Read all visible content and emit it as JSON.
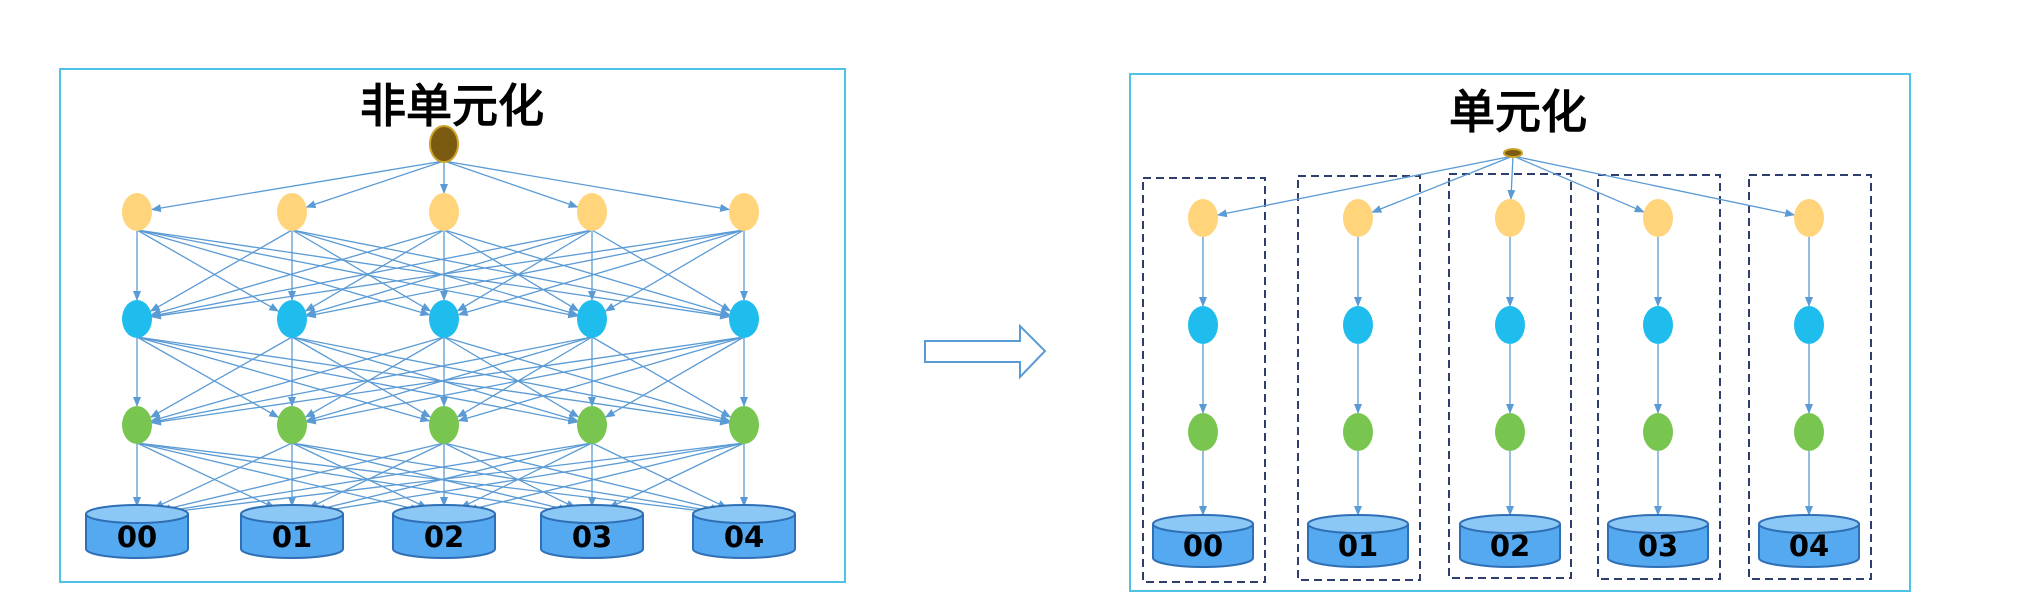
{
  "diagram": {
    "left_panel": {
      "title": "非单元化",
      "databases": [
        "00",
        "01",
        "02",
        "03",
        "04"
      ]
    },
    "right_panel": {
      "title": "单元化",
      "databases": [
        "00",
        "01",
        "02",
        "03",
        "04"
      ]
    },
    "colors": {
      "panel_border": "#4FC3E6",
      "edge": "#5B9BD5",
      "root_node": "#7B5A12",
      "root_node_stroke": "#C9A227",
      "tier1_node": "#FFD47A",
      "tier2_node": "#1FBDEE",
      "tier3_node": "#78C550",
      "database_fill": "#55A9F0",
      "database_top": "#8CC8F6",
      "database_stroke": "#2F6FB5",
      "cell_border": "#2E3F6E",
      "transition_arrow": "#5B9BD5"
    }
  }
}
